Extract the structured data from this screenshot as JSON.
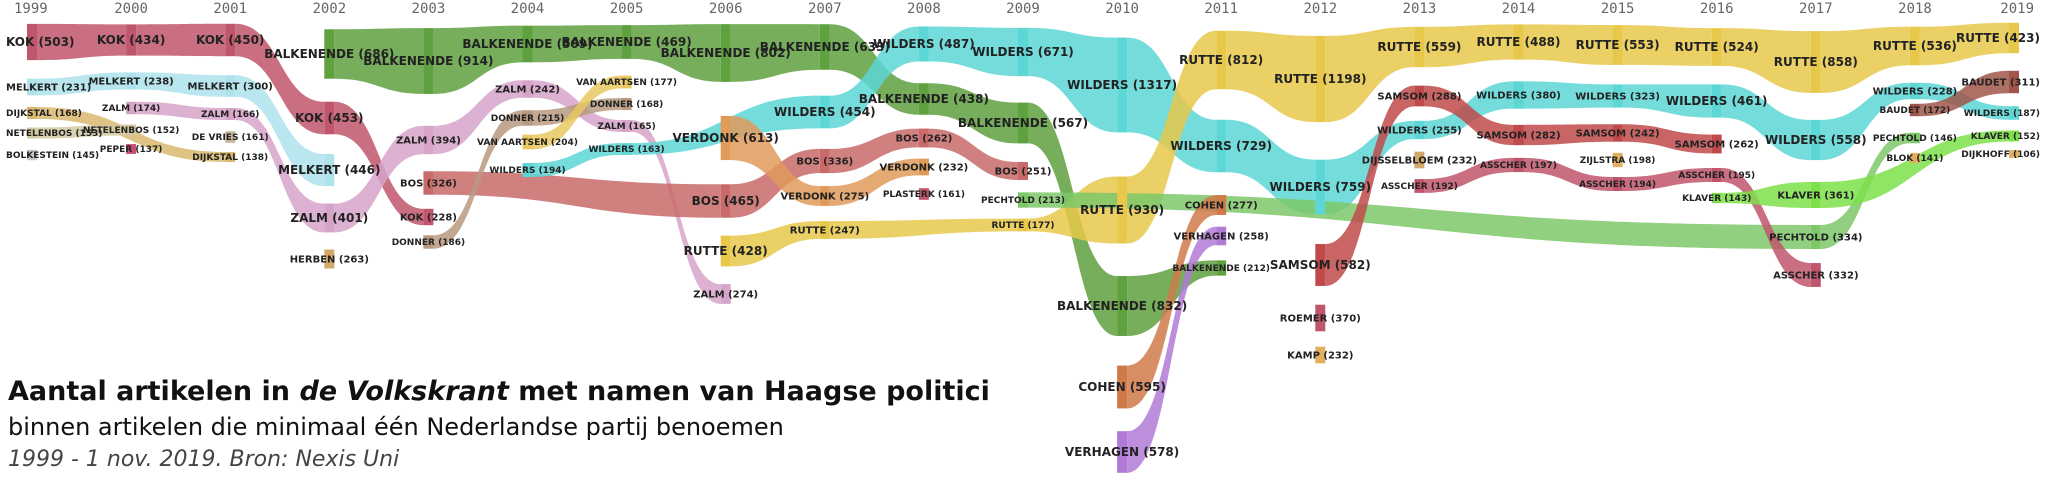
{
  "title": {
    "part1": "Aantal artikelen in ",
    "newspaper": "de Volkskrant",
    "part2": " met namen van Haagse politici",
    "subtitle": "binnen artikelen die minimaal één Nederlandse partij benoemen",
    "source": "1999 - 1 nov. 2019. Bron: Nexis Uni"
  },
  "colors": {
    "kok": "#c0566b",
    "melkert": "#aee3ec",
    "dijkstal": "#d8b870",
    "netelenbos": "#d4c9a0",
    "bolkestein": "#c9c9c9",
    "zalm": "#d6a3c9",
    "peper": "#c94f7a",
    "devries": "#c8b89a",
    "balkenende": "#5fa03f",
    "herben": "#d4a86a",
    "bos": "#c96a6a",
    "donner": "#b89a80",
    "vanaartsen": "#e8c860",
    "wilders": "#5dd6d6",
    "verdonk": "#e09a5a",
    "rutte": "#e8c84a",
    "plasterk": "#c0566b",
    "pechtold": "#7ec86a",
    "cohen": "#d07a4a",
    "verhagen": "#b07ad6",
    "samsom": "#c04a4a",
    "roemer": "#c0566b",
    "kamp": "#e0b060",
    "dijsselbloem": "#d4a86a",
    "asscher": "#c0566b",
    "zijlstra": "#e0b060",
    "klaver": "#7ee04a",
    "baudet": "#a0564a",
    "blok": "#e0b060",
    "dijkhoff": "#e0b060"
  },
  "chart_data": {
    "type": "sankey-bump",
    "years": [
      "1999",
      "2000",
      "2001",
      "2002",
      "2003",
      "2004",
      "2005",
      "2006",
      "2007",
      "2008",
      "2009",
      "2010",
      "2011",
      "2012",
      "2013",
      "2014",
      "2015",
      "2016",
      "2017",
      "2018",
      "2019"
    ],
    "series": [
      {
        "name": "KOK",
        "color_key": "kok",
        "points": {
          "1999": 503,
          "2000": 434,
          "2001": 450,
          "2002": 453,
          "2003": 228
        }
      },
      {
        "name": "MELKERT",
        "color_key": "melkert",
        "points": {
          "1999": 231,
          "2000": 238,
          "2001": 300,
          "2002": 446
        }
      },
      {
        "name": "DIJKSTAL",
        "color_key": "dijkstal",
        "points": {
          "1999": 168,
          "2001": 138
        }
      },
      {
        "name": "NETELENBOS",
        "color_key": "netelenbos",
        "points": {
          "1999": 153,
          "2000": 152
        }
      },
      {
        "name": "BOLKESTEIN",
        "color_key": "bolkestein",
        "points": {
          "1999": 145
        }
      },
      {
        "name": "ZALM",
        "color_key": "zalm",
        "points": {
          "2000": 174,
          "2001": 166,
          "2002": 401,
          "2003": 394,
          "2004": 242,
          "2005": 165,
          "2006": 274
        }
      },
      {
        "name": "PEPER",
        "color_key": "peper",
        "points": {
          "2000": 137
        }
      },
      {
        "name": "DE VRIES",
        "color_key": "devries",
        "points": {
          "2001": 161
        }
      },
      {
        "name": "BALKENENDE",
        "color_key": "balkenende",
        "points": {
          "2002": 686,
          "2003": 914,
          "2004": 509,
          "2005": 469,
          "2006": 802,
          "2007": 633,
          "2008": 438,
          "2009": 567,
          "2010": 832,
          "2011": 212
        }
      },
      {
        "name": "HERBEN",
        "color_key": "herben",
        "points": {
          "2002": 263
        }
      },
      {
        "name": "BOS",
        "color_key": "bos",
        "points": {
          "2003": 326,
          "2006": 465,
          "2007": 336,
          "2008": 262,
          "2009": 251
        }
      },
      {
        "name": "DONNER",
        "color_key": "donner",
        "points": {
          "2003": 186,
          "2004": 215,
          "2005": 168
        }
      },
      {
        "name": "VAN AARTSEN",
        "color_key": "vanaartsen",
        "points": {
          "2004": 204,
          "2005": 177
        }
      },
      {
        "name": "WILDERS",
        "color_key": "wilders",
        "points": {
          "2004": 194,
          "2005": 163,
          "2007": 454,
          "2008": 487,
          "2009": 671,
          "2010": 1317,
          "2011": 729,
          "2012": 759,
          "2013": 255,
          "2014": 380,
          "2015": 323,
          "2016": 461,
          "2017": 558,
          "2018": 228,
          "2019": 187
        }
      },
      {
        "name": "VERDONK",
        "color_key": "verdonk",
        "points": {
          "2006": 613,
          "2007": 275,
          "2008": 232
        }
      },
      {
        "name": "RUTTE",
        "color_key": "rutte",
        "points": {
          "2006": 428,
          "2007": 247,
          "2009": 177,
          "2010": 930,
          "2011": 812,
          "2012": 1198,
          "2013": 559,
          "2014": 488,
          "2015": 553,
          "2016": 524,
          "2017": 858,
          "2018": 536,
          "2019": 423
        }
      },
      {
        "name": "PLASTERK",
        "color_key": "plasterk",
        "points": {
          "2008": 161
        }
      },
      {
        "name": "PECHTOLD",
        "color_key": "pechtold",
        "points": {
          "2009": 213,
          "2017": 334,
          "2018": 146
        }
      },
      {
        "name": "COHEN",
        "color_key": "cohen",
        "points": {
          "2010": 595,
          "2011": 277
        }
      },
      {
        "name": "VERHAGEN",
        "color_key": "verhagen",
        "points": {
          "2010": 578,
          "2011": 258
        }
      },
      {
        "name": "SAMSOM",
        "color_key": "samsom",
        "points": {
          "2012": 582,
          "2013": 288,
          "2014": 282,
          "2015": 242,
          "2016": 262
        }
      },
      {
        "name": "ROEMER",
        "color_key": "roemer",
        "points": {
          "2012": 370
        }
      },
      {
        "name": "KAMP",
        "color_key": "kamp",
        "points": {
          "2012": 232
        }
      },
      {
        "name": "DIJSSELBLOEM",
        "color_key": "dijsselbloem",
        "points": {
          "2013": 232
        }
      },
      {
        "name": "ASSCHER",
        "color_key": "asscher",
        "points": {
          "2013": 192,
          "2014": 197,
          "2015": 194,
          "2016": 195,
          "2017": 332
        }
      },
      {
        "name": "ZIJLSTRA",
        "color_key": "zijlstra",
        "points": {
          "2015": 198
        }
      },
      {
        "name": "KLAVER",
        "color_key": "klaver",
        "points": {
          "2016": 143,
          "2017": 361,
          "2019": 152
        }
      },
      {
        "name": "BAUDET",
        "color_key": "baudet",
        "points": {
          "2018": 172,
          "2019": 311
        }
      },
      {
        "name": "BLOK",
        "color_key": "blok",
        "points": {
          "2018": 141
        }
      },
      {
        "name": "DIJKHOFF",
        "color_key": "dijkhoff",
        "points": {
          "2019": 106
        }
      }
    ]
  }
}
